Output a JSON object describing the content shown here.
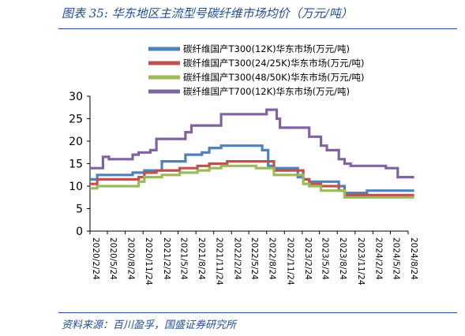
{
  "figure": {
    "title": "图表 35:  华东地区主流型号碳纤维市场均价（万元/吨）",
    "source": "资料来源：百川盈孚，国盛证券研究所"
  },
  "chart_data": {
    "type": "line",
    "x_ticks": [
      "2020/2/24",
      "2020/5/24",
      "2020/8/24",
      "2020/11/24",
      "2021/2/24",
      "2021/5/24",
      "2021/8/24",
      "2021/11/24",
      "2022/2/24",
      "2022/5/24",
      "2022/8/24",
      "2022/11/24",
      "2023/2/24",
      "2023/5/24",
      "2023/8/24",
      "2023/11/24",
      "2024/2/24",
      "2024/5/24",
      "2024/8/24"
    ],
    "ylim": [
      0,
      30
    ],
    "y_ticks": [
      0,
      5,
      10,
      15,
      20,
      25,
      30
    ],
    "grid": false,
    "legend_position": "top",
    "series": [
      {
        "name": "碳纤维国产T300(12K)华东市场(万元/吨)",
        "color": "#4f81bd",
        "points": [
          [
            "2020/2/24",
            11.5
          ],
          [
            "2020/3/24",
            11.5
          ],
          [
            "2020/4/1",
            12.5
          ],
          [
            "2020/9/1",
            12.5
          ],
          [
            "2020/10/1",
            13.0
          ],
          [
            "2020/12/1",
            13.5
          ],
          [
            "2021/3/1",
            15.5
          ],
          [
            "2021/6/1",
            15.5
          ],
          [
            "2021/7/1",
            17.0
          ],
          [
            "2021/9/24",
            17.5
          ],
          [
            "2021/11/1",
            18.5
          ],
          [
            "2022/1/1",
            19.0
          ],
          [
            "2022/7/1",
            19.0
          ],
          [
            "2022/8/1",
            18.0
          ],
          [
            "2022/9/1",
            14.5
          ],
          [
            "2022/10/1",
            14.0
          ],
          [
            "2023/1/1",
            14.0
          ],
          [
            "2023/2/1",
            12.0
          ],
          [
            "2023/3/1",
            11.5
          ],
          [
            "2023/4/1",
            11.0
          ],
          [
            "2023/8/1",
            11.0
          ],
          [
            "2023/9/1",
            10.0
          ],
          [
            "2023/10/1",
            8.5
          ],
          [
            "2024/1/1",
            8.5
          ],
          [
            "2024/1/24",
            9.0
          ],
          [
            "2024/9/24",
            9.0
          ]
        ]
      },
      {
        "name": "碳纤维国产T300(24/25K)华东市场(万元/吨)",
        "color": "#c0504d",
        "points": [
          [
            "2020/2/24",
            10.5
          ],
          [
            "2020/4/1",
            11.5
          ],
          [
            "2020/10/1",
            11.5
          ],
          [
            "2020/11/1",
            12.0
          ],
          [
            "2020/12/1",
            13.0
          ],
          [
            "2021/2/1",
            13.5
          ],
          [
            "2021/6/1",
            14.0
          ],
          [
            "2021/9/1",
            14.5
          ],
          [
            "2021/11/1",
            15.0
          ],
          [
            "2022/1/1",
            15.0
          ],
          [
            "2022/2/1",
            15.5
          ],
          [
            "2022/9/1",
            15.5
          ],
          [
            "2022/10/1",
            13.5
          ],
          [
            "2023/2/1",
            13.5
          ],
          [
            "2023/3/1",
            11.5
          ],
          [
            "2023/4/1",
            10.5
          ],
          [
            "2023/6/1",
            10.0
          ],
          [
            "2023/8/1",
            10.0
          ],
          [
            "2023/9/1",
            9.0
          ],
          [
            "2023/10/1",
            8.0
          ],
          [
            "2024/9/24",
            8.0
          ]
        ]
      },
      {
        "name": "碳纤维国产T300(48/50K)华东市场(万元/吨)",
        "color": "#9bbb59",
        "points": [
          [
            "2020/2/24",
            9.5
          ],
          [
            "2020/4/1",
            10.0
          ],
          [
            "2020/10/1",
            10.0
          ],
          [
            "2020/11/1",
            11.0
          ],
          [
            "2020/12/1",
            12.0
          ],
          [
            "2021/3/1",
            12.5
          ],
          [
            "2021/6/1",
            13.0
          ],
          [
            "2021/9/1",
            13.5
          ],
          [
            "2021/11/1",
            14.0
          ],
          [
            "2022/1/1",
            14.5
          ],
          [
            "2022/7/1",
            14.0
          ],
          [
            "2022/9/1",
            14.0
          ],
          [
            "2022/10/1",
            12.5
          ],
          [
            "2023/2/1",
            12.5
          ],
          [
            "2023/3/1",
            10.5
          ],
          [
            "2023/4/1",
            10.0
          ],
          [
            "2023/6/1",
            9.0
          ],
          [
            "2023/9/1",
            9.0
          ],
          [
            "2023/10/1",
            7.5
          ],
          [
            "2024/9/24",
            7.5
          ]
        ]
      },
      {
        "name": "碳纤维国产T700(12K)华东市场(万元/吨)",
        "color": "#8064a2",
        "points": [
          [
            "2020/2/24",
            14.0
          ],
          [
            "2020/4/24",
            14.0
          ],
          [
            "2020/5/1",
            16.5
          ],
          [
            "2020/6/1",
            16.0
          ],
          [
            "2020/9/1",
            16.0
          ],
          [
            "2020/10/1",
            17.0
          ],
          [
            "2020/11/1",
            17.5
          ],
          [
            "2021/1/1",
            18.0
          ],
          [
            "2021/2/1",
            20.5
          ],
          [
            "2021/6/1",
            20.5
          ],
          [
            "2021/7/1",
            22.0
          ],
          [
            "2021/8/1",
            23.5
          ],
          [
            "2021/12/1",
            23.5
          ],
          [
            "2022/1/1",
            26.0
          ],
          [
            "2022/8/1",
            26.0
          ],
          [
            "2022/8/24",
            27.0
          ],
          [
            "2022/10/1",
            27.0
          ],
          [
            "2022/10/15",
            25.0
          ],
          [
            "2022/11/1",
            23.0
          ],
          [
            "2023/3/1",
            23.0
          ],
          [
            "2023/4/1",
            21.0
          ],
          [
            "2023/6/1",
            19.0
          ],
          [
            "2023/7/1",
            18.0
          ],
          [
            "2023/9/1",
            16.0
          ],
          [
            "2023/10/1",
            15.0
          ],
          [
            "2023/11/1",
            14.5
          ],
          [
            "2024/4/1",
            14.5
          ],
          [
            "2024/5/1",
            14.0
          ],
          [
            "2024/7/1",
            12.0
          ],
          [
            "2024/9/24",
            12.0
          ]
        ]
      }
    ]
  }
}
